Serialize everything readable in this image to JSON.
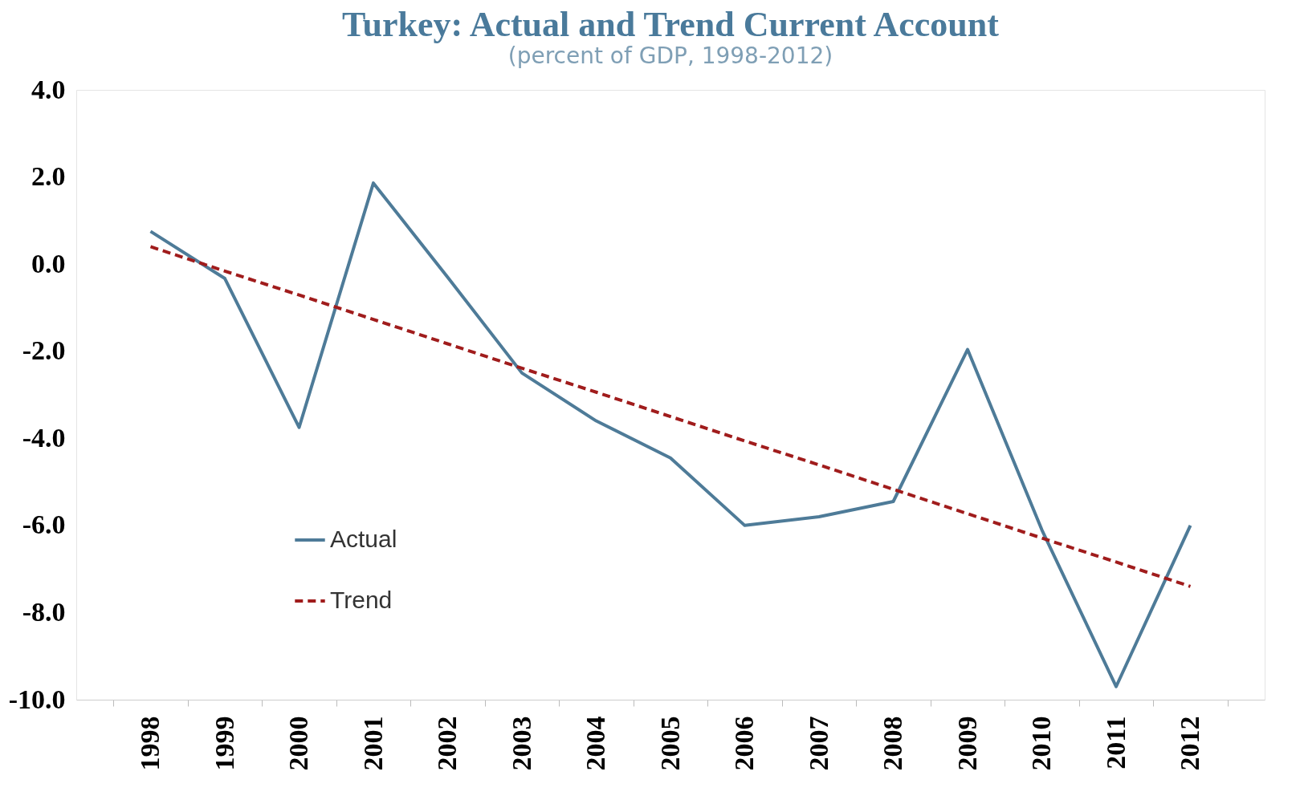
{
  "chart_data": {
    "type": "line",
    "title": "Turkey: Actual and Trend Current Account",
    "subtitle": "(percent of GDP, 1998-2012)",
    "categories": [
      "1998",
      "1999",
      "2000",
      "2001",
      "2002",
      "2003",
      "2004",
      "2005",
      "2006",
      "2007",
      "2008",
      "2009",
      "2010",
      "2011",
      "2012"
    ],
    "series": [
      {
        "name": "Actual",
        "color": "#4e7b98",
        "line_style": "solid",
        "values": [
          0.75,
          -0.33,
          -3.75,
          1.86,
          -0.3,
          -2.5,
          -3.6,
          -4.45,
          -6.0,
          -5.8,
          -5.45,
          -1.96,
          -6.1,
          -9.7,
          -6.0
        ]
      },
      {
        "name": "Trend",
        "color": "#a01c1c",
        "line_style": "dashed",
        "values": [
          0.4,
          -0.16,
          -0.71,
          -1.27,
          -1.83,
          -2.39,
          -2.94,
          -3.5,
          -4.06,
          -4.61,
          -5.17,
          -5.73,
          -6.29,
          -6.84,
          -7.4
        ]
      }
    ],
    "ylim": [
      -10,
      4
    ],
    "yticks": [
      {
        "value": -10,
        "label": "-10.0"
      },
      {
        "value": -8,
        "label": "-8.0"
      },
      {
        "value": -6,
        "label": "-6.0"
      },
      {
        "value": -4,
        "label": "-4.0"
      },
      {
        "value": -2,
        "label": "-2.0"
      },
      {
        "value": 0,
        "label": "0.0"
      },
      {
        "value": 2,
        "label": "2.0"
      },
      {
        "value": 4,
        "label": "4.0"
      }
    ],
    "legend": "bottom left"
  }
}
